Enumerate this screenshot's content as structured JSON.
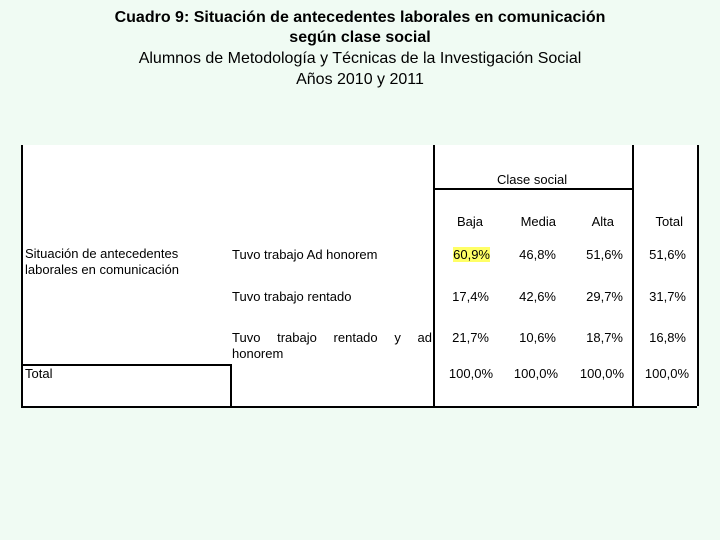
{
  "title": {
    "line1": "Cuadro 9: Situación de antecedentes laborales en comunicación",
    "line2": "según clase social",
    "line3": "Alumnos de Metodología y Técnicas de la Investigación Social",
    "line4": "Años 2010 y 2011"
  },
  "table": {
    "group_header": "Clase social",
    "columns": [
      "Baja",
      "Media",
      "Alta",
      "Total"
    ],
    "row_variable": "Situación de antecedentes laborales en comunicación",
    "rows": [
      {
        "label": "Tuvo trabajo Ad honorem",
        "values": [
          "60,9%",
          "46,8%",
          "51,6%",
          "51,6%"
        ]
      },
      {
        "label_a": "Tuvo trabajo rentado",
        "values": [
          "17,4%",
          "42,6%",
          "29,7%",
          "31,7%"
        ]
      },
      {
        "label_line1": "Tuvo trabajo rentado y ad",
        "label_line2": "honorem",
        "values": [
          "21,7%",
          "10,6%",
          "18,7%",
          "16,8%"
        ]
      }
    ],
    "total_label": "Total",
    "total_values": [
      "100,0%",
      "100,0%",
      "100,0%",
      "100,0%"
    ],
    "highlight_color": "#ffff66"
  }
}
